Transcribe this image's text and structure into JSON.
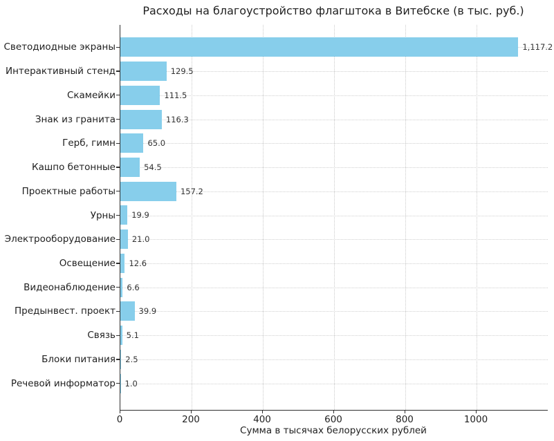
{
  "chart_data": {
    "type": "bar",
    "orientation": "horizontal",
    "title": "Расходы на благоустройство флагштока в Витебске (в тыс. руб.)",
    "xlabel": "Сумма в тысячах белорусских рублей",
    "ylabel": "",
    "categories": [
      "Светодиодные экраны",
      "Интерактивный стенд",
      "Скамейки",
      "Знак из гранита",
      "Герб, гимн",
      "Кашпо бетонные",
      "Проектные работы",
      "Урны",
      "Электрооборудование",
      "Освещение",
      "Видеонаблюдение",
      "Предынвест. проект",
      "Связь",
      "Блоки питания",
      "Речевой информатор"
    ],
    "values": [
      1117.2,
      129.5,
      111.5,
      116.3,
      65.0,
      54.5,
      157.2,
      19.9,
      21.0,
      12.6,
      6.6,
      39.9,
      5.1,
      2.5,
      1.0
    ],
    "value_labels": [
      "1,117.2",
      "129.5",
      "111.5",
      "116.3",
      "65.0",
      "54.5",
      "157.2",
      "19.9",
      "21.0",
      "12.6",
      "6.6",
      "39.9",
      "5.1",
      "2.5",
      "1.0"
    ],
    "xlim": [
      0,
      1200
    ],
    "xticks": [
      0,
      200,
      400,
      600,
      800,
      1000
    ],
    "xtick_labels": [
      "0",
      "200",
      "400",
      "600",
      "800",
      "1000"
    ],
    "grid": "dotted, horizontal and vertical",
    "legend_position": "none",
    "bar_color": "#87CEEB",
    "spine_color": "#2e2e2e",
    "grid_color": "#c9c9c9",
    "text_color": "#1f1f1f"
  }
}
